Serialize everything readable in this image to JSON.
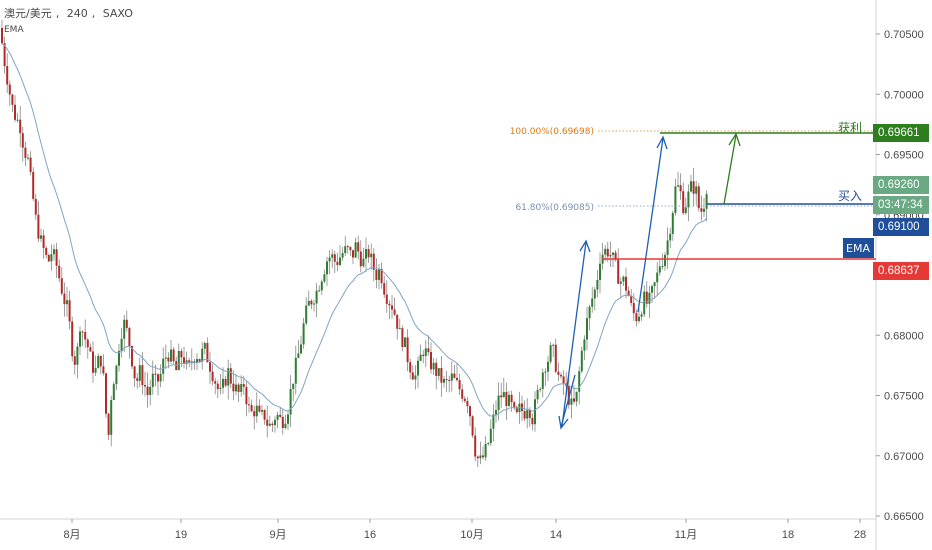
{
  "header": {
    "symbol": "澳元/美元",
    "interval": "240",
    "exchange": "SAXO",
    "indicator": "EMA"
  },
  "price_axis": {
    "ticks": [
      "0.70500",
      "0.70000",
      "0.69500",
      "0.69000",
      "0.68000",
      "0.67500",
      "0.67000",
      "0.66500"
    ],
    "tick_values": [
      0.705,
      0.7,
      0.695,
      0.69,
      0.68,
      0.675,
      0.67,
      0.665
    ]
  },
  "time_axis": {
    "ticks": [
      "8月",
      "19",
      "9月",
      "16",
      "10月",
      "14",
      "11月",
      "18",
      "28"
    ]
  },
  "annotations": {
    "take_profit_label": "获利",
    "buy_label": "买入",
    "ema_label": "EMA",
    "fib_100": "100.00%(0.69698)",
    "fib_618": "61.80%(0.69085)"
  },
  "badges": {
    "take_profit": "0.69661",
    "last_price": "0.69260",
    "countdown": "03:47:34",
    "buy": "0.69100",
    "ema": "0.68637"
  },
  "colors": {
    "up_candle": "#2e7d32",
    "down_candle": "#b02a2a",
    "ema_line": "#7fa5c6",
    "take_profit": "#2e7d1e",
    "buy_line": "#1f4e9a",
    "ema_level": "#e53935",
    "fib_100": "#e07a14",
    "fib_618": "#7a8fb0",
    "arrows": "#1f5fb4"
  },
  "chart_data": {
    "type": "candlestick",
    "title": "",
    "xlabel": "",
    "ylabel": "",
    "ylim": [
      0.665,
      0.708
    ],
    "levels": [
      {
        "name": "获利",
        "value": 0.69661
      },
      {
        "name": "买入",
        "value": 0.691
      },
      {
        "name": "EMA",
        "value": 0.68637
      }
    ],
    "close_path": [
      [
        0,
        0.7055
      ],
      [
        4,
        0.703
      ],
      [
        8,
        0.701
      ],
      [
        12,
        0.699
      ],
      [
        16,
        0.698
      ],
      [
        20,
        0.6975
      ],
      [
        24,
        0.6955
      ],
      [
        28,
        0.6945
      ],
      [
        32,
        0.692
      ],
      [
        36,
        0.6895
      ],
      [
        40,
        0.688
      ],
      [
        44,
        0.687
      ],
      [
        48,
        0.686
      ],
      [
        52,
        0.687
      ],
      [
        56,
        0.686
      ],
      [
        60,
        0.6845
      ],
      [
        64,
        0.683
      ],
      [
        68,
        0.682
      ],
      [
        72,
        0.679
      ],
      [
        76,
        0.6775
      ],
      [
        80,
        0.681
      ],
      [
        84,
        0.68
      ],
      [
        88,
        0.679
      ],
      [
        92,
        0.6775
      ],
      [
        96,
        0.677
      ],
      [
        100,
        0.6785
      ],
      [
        104,
        0.676
      ],
      [
        108,
        0.671
      ],
      [
        112,
        0.676
      ],
      [
        116,
        0.677
      ],
      [
        120,
        0.68
      ],
      [
        124,
        0.681
      ],
      [
        128,
        0.68
      ],
      [
        132,
        0.678
      ],
      [
        136,
        0.676
      ],
      [
        140,
        0.677
      ],
      [
        144,
        0.676
      ],
      [
        148,
        0.675
      ],
      [
        152,
        0.6765
      ],
      [
        156,
        0.676
      ],
      [
        160,
        0.6765
      ],
      [
        164,
        0.678
      ],
      [
        168,
        0.6785
      ],
      [
        172,
        0.678
      ],
      [
        176,
        0.677
      ],
      [
        180,
        0.6785
      ],
      [
        184,
        0.678
      ],
      [
        188,
        0.677
      ],
      [
        192,
        0.678
      ],
      [
        196,
        0.6785
      ],
      [
        200,
        0.678
      ],
      [
        204,
        0.679
      ],
      [
        208,
        0.678
      ],
      [
        212,
        0.677
      ],
      [
        216,
        0.676
      ],
      [
        220,
        0.675
      ],
      [
        224,
        0.676
      ],
      [
        228,
        0.677
      ],
      [
        232,
        0.676
      ],
      [
        236,
        0.6755
      ],
      [
        240,
        0.675
      ],
      [
        244,
        0.676
      ],
      [
        248,
        0.674
      ],
      [
        252,
        0.6735
      ],
      [
        256,
        0.674
      ],
      [
        260,
        0.673
      ],
      [
        264,
        0.6735
      ],
      [
        268,
        0.6725
      ],
      [
        272,
        0.6725
      ],
      [
        276,
        0.6735
      ],
      [
        280,
        0.673
      ],
      [
        284,
        0.673
      ],
      [
        288,
        0.674
      ],
      [
        292,
        0.676
      ],
      [
        296,
        0.6775
      ],
      [
        300,
        0.679
      ],
      [
        304,
        0.681
      ],
      [
        308,
        0.6825
      ],
      [
        312,
        0.683
      ],
      [
        316,
        0.6835
      ],
      [
        320,
        0.6845
      ],
      [
        324,
        0.6855
      ],
      [
        328,
        0.6865
      ],
      [
        332,
        0.6865
      ],
      [
        336,
        0.686
      ],
      [
        340,
        0.6865
      ],
      [
        344,
        0.687
      ],
      [
        348,
        0.687
      ],
      [
        352,
        0.6865
      ],
      [
        356,
        0.6875
      ],
      [
        360,
        0.6865
      ],
      [
        364,
        0.686
      ],
      [
        368,
        0.687
      ],
      [
        372,
        0.686
      ],
      [
        376,
        0.685
      ],
      [
        380,
        0.6855
      ],
      [
        384,
        0.684
      ],
      [
        388,
        0.683
      ],
      [
        392,
        0.6825
      ],
      [
        396,
        0.6815
      ],
      [
        400,
        0.68
      ],
      [
        404,
        0.6795
      ],
      [
        408,
        0.678
      ],
      [
        412,
        0.677
      ],
      [
        416,
        0.6765
      ],
      [
        420,
        0.678
      ],
      [
        424,
        0.679
      ],
      [
        428,
        0.678
      ],
      [
        432,
        0.6775
      ],
      [
        436,
        0.677
      ],
      [
        440,
        0.6765
      ],
      [
        444,
        0.676
      ],
      [
        448,
        0.676
      ],
      [
        452,
        0.6765
      ],
      [
        456,
        0.676
      ],
      [
        460,
        0.6755
      ],
      [
        464,
        0.675
      ],
      [
        468,
        0.6745
      ],
      [
        472,
        0.6725
      ],
      [
        476,
        0.67
      ],
      [
        480,
        0.6695
      ],
      [
        484,
        0.67
      ],
      [
        488,
        0.671
      ],
      [
        492,
        0.6725
      ],
      [
        496,
        0.674
      ],
      [
        500,
        0.675
      ],
      [
        504,
        0.675
      ],
      [
        508,
        0.6745
      ],
      [
        512,
        0.674
      ],
      [
        516,
        0.673
      ],
      [
        520,
        0.674
      ],
      [
        524,
        0.6735
      ],
      [
        528,
        0.6745
      ],
      [
        532,
        0.673
      ],
      [
        536,
        0.6745
      ],
      [
        540,
        0.676
      ],
      [
        544,
        0.6775
      ],
      [
        548,
        0.678
      ],
      [
        552,
        0.679
      ],
      [
        556,
        0.6775
      ],
      [
        560,
        0.676
      ],
      [
        564,
        0.676
      ],
      [
        568,
        0.675
      ],
      [
        572,
        0.674
      ],
      [
        576,
        0.6745
      ],
      [
        580,
        0.6775
      ],
      [
        584,
        0.68
      ],
      [
        588,
        0.6815
      ],
      [
        592,
        0.683
      ],
      [
        596,
        0.684
      ],
      [
        600,
        0.6865
      ],
      [
        604,
        0.687
      ],
      [
        608,
        0.687
      ],
      [
        612,
        0.6865
      ],
      [
        616,
        0.6855
      ],
      [
        620,
        0.6845
      ],
      [
        624,
        0.6845
      ],
      [
        628,
        0.6835
      ],
      [
        632,
        0.682
      ],
      [
        636,
        0.6815
      ],
      [
        640,
        0.682
      ],
      [
        644,
        0.683
      ],
      [
        648,
        0.6825
      ],
      [
        652,
        0.6835
      ],
      [
        656,
        0.6845
      ],
      [
        660,
        0.686
      ],
      [
        664,
        0.6865
      ],
      [
        668,
        0.688
      ],
      [
        672,
        0.69
      ],
      [
        676,
        0.6925
      ],
      [
        680,
        0.692
      ],
      [
        684,
        0.6905
      ],
      [
        688,
        0.6915
      ],
      [
        692,
        0.6925
      ],
      [
        696,
        0.692
      ],
      [
        700,
        0.69
      ],
      [
        704,
        0.691
      ],
      [
        707,
        0.6926
      ]
    ]
  }
}
